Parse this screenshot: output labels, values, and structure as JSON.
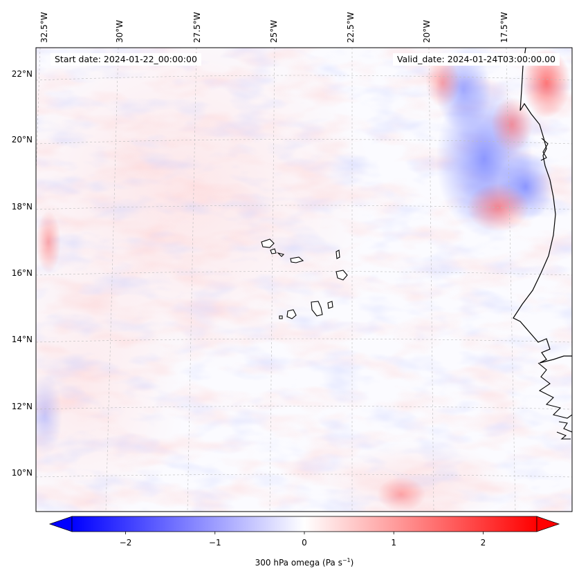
{
  "header": {
    "start_date": "Start date: 2024-01-22_00:00:00",
    "valid_date": "Valid_date: 2024-01-24T03:00:00.00"
  },
  "map": {
    "longitude_labels": [
      "32.5°W",
      "30°W",
      "27.5°W",
      "25°W",
      "22.5°W",
      "20°W",
      "17.5°W"
    ],
    "latitude_labels": [
      "22°N",
      "20°N",
      "18°N",
      "16°N",
      "14°N",
      "12°N",
      "10°N"
    ],
    "field": "300 hPa omega",
    "colormap": [
      "#0000ff",
      "#ffffff",
      "#ff0000"
    ],
    "gridline_color": "#bbbbbb",
    "coastline_color": "#000000"
  },
  "colorbar": {
    "ticks": [
      -2,
      -1,
      0,
      1,
      2
    ],
    "tick_labels": [
      "−2",
      "−1",
      "0",
      "1",
      "2"
    ],
    "range": [
      -2.6,
      2.6
    ],
    "label_main": "300 hPa omega (Pa s",
    "label_sup": "−1",
    "label_end": ")"
  }
}
